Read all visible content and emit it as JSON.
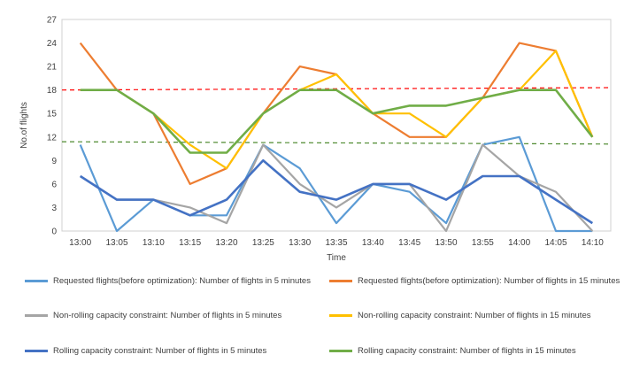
{
  "chart_data": {
    "type": "line",
    "xlabel": "Time",
    "ylabel": "No.of flights",
    "ylim": [
      0,
      27
    ],
    "yticks": [
      0,
      3,
      6,
      9,
      12,
      15,
      18,
      21,
      24,
      27
    ],
    "categories": [
      "13:00",
      "13:05",
      "13:10",
      "13:15",
      "13:20",
      "13:25",
      "13:30",
      "13:35",
      "13:40",
      "13:45",
      "13:50",
      "13:55",
      "14:00",
      "14:05",
      "14:10"
    ],
    "series": [
      {
        "name": "Requested flights(before optimization): Number of flights in 5 minutes",
        "color": "#5b9bd5",
        "values": [
          11,
          0,
          4,
          2,
          2,
          11,
          8,
          1,
          6,
          5,
          1,
          11,
          12,
          0,
          0
        ]
      },
      {
        "name": "Requested flights(before optimization): Number of flights in 15 minutes",
        "color": "#ed7d31",
        "values": [
          24,
          18,
          15,
          6,
          8,
          15,
          21,
          20,
          15,
          12,
          12,
          17,
          24,
          23,
          12
        ]
      },
      {
        "name": "Non-rolling capacity constraint: Number of flights in 5 minutes",
        "color": "#a5a5a5",
        "values": [
          7,
          4,
          4,
          3,
          1,
          11,
          6,
          3,
          6,
          6,
          0,
          11,
          7,
          5,
          0
        ]
      },
      {
        "name": "Non-rolling capacity constraint: Number of flights in 15 minutes",
        "color": "#ffc000",
        "values": [
          18,
          18,
          15,
          11,
          8,
          15,
          18,
          20,
          15,
          15,
          12,
          17,
          18,
          23,
          12
        ]
      },
      {
        "name": "Rolling capacity constraint: Number of flights in 5 minutes",
        "color": "#4472c4",
        "values": [
          7,
          4,
          4,
          2,
          4,
          9,
          5,
          4,
          6,
          6,
          4,
          7,
          7,
          4,
          1
        ]
      },
      {
        "name": "Rolling capacity constraint: Number of flights in 15 minutes",
        "color": "#70ad47",
        "values": [
          18,
          18,
          15,
          10,
          10,
          15,
          18,
          18,
          15,
          16,
          16,
          17,
          18,
          18,
          12
        ]
      }
    ],
    "reference_lines": [
      {
        "color": "#ff0000",
        "from": 18.0,
        "to": 18.3
      },
      {
        "color": "#4e8a2f",
        "from": 11.4,
        "to": 11.1
      }
    ]
  }
}
